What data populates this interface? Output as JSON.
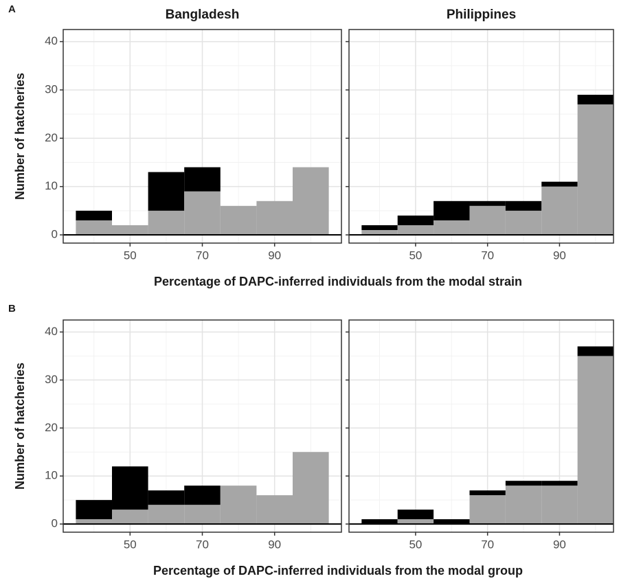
{
  "chart_data": [
    {
      "type": "histogram",
      "tag": "A",
      "title": "Bangladesh",
      "ylabel": "Number of hatcheries",
      "xlabel": "Percentage of DAPC-inferred individuals from the modal strain",
      "bins": [
        35,
        45,
        55,
        65,
        75,
        85,
        95,
        105
      ],
      "stacked": true,
      "series": [
        {
          "color": "#a6a6a6",
          "values": [
            3,
            2,
            5,
            9,
            6,
            7,
            14
          ]
        },
        {
          "color": "#000000",
          "values": [
            2,
            0,
            8,
            5,
            0,
            0,
            0
          ]
        }
      ],
      "xlim": [
        31.5,
        108.5
      ],
      "ylim": [
        -1.7,
        42.5
      ],
      "xticks": [
        50,
        70,
        90
      ],
      "yticks": [
        0,
        10,
        20,
        30,
        40
      ],
      "grid": true,
      "hline": 0,
      "show_ytick_labels": true
    },
    {
      "type": "histogram",
      "title": "Philippines",
      "bins": [
        35,
        45,
        55,
        65,
        75,
        85,
        95,
        105
      ],
      "stacked": true,
      "series": [
        {
          "color": "#a6a6a6",
          "values": [
            1,
            2,
            3,
            6,
            5,
            10,
            27
          ]
        },
        {
          "color": "#000000",
          "values": [
            1,
            2,
            4,
            1,
            2,
            1,
            2
          ]
        }
      ],
      "xlim": [
        31.5,
        105
      ],
      "ylim": [
        -1.7,
        42.5
      ],
      "xticks": [
        50,
        70,
        90
      ],
      "yticks": [
        0,
        10,
        20,
        30,
        40
      ],
      "grid": true,
      "hline": 0,
      "show_ytick_labels": false
    },
    {
      "type": "histogram",
      "tag": "B",
      "ylabel": "Number of hatcheries",
      "xlabel": "Percentage of DAPC-inferred individuals from the modal group",
      "bins": [
        35,
        45,
        55,
        65,
        75,
        85,
        95,
        105
      ],
      "stacked": true,
      "series": [
        {
          "color": "#a6a6a6",
          "values": [
            1,
            3,
            4,
            4,
            8,
            6,
            15
          ]
        },
        {
          "color": "#000000",
          "values": [
            4,
            9,
            3,
            4,
            0,
            0,
            0
          ]
        }
      ],
      "xlim": [
        31.5,
        108.5
      ],
      "ylim": [
        -1.7,
        42.5
      ],
      "xticks": [
        50,
        70,
        90
      ],
      "yticks": [
        0,
        10,
        20,
        30,
        40
      ],
      "grid": true,
      "hline": 0,
      "show_ytick_labels": true
    },
    {
      "type": "histogram",
      "bins": [
        35,
        45,
        55,
        65,
        75,
        85,
        95,
        105
      ],
      "stacked": true,
      "series": [
        {
          "color": "#a6a6a6",
          "values": [
            0,
            1,
            0,
            6,
            8,
            8,
            35
          ]
        },
        {
          "color": "#000000",
          "values": [
            1,
            2,
            1,
            1,
            1,
            1,
            2
          ]
        }
      ],
      "xlim": [
        31.5,
        105
      ],
      "ylim": [
        -1.7,
        42.5
      ],
      "xticks": [
        50,
        70,
        90
      ],
      "yticks": [
        0,
        10,
        20,
        30,
        40
      ],
      "grid": true,
      "hline": 0,
      "show_ytick_labels": false
    }
  ]
}
